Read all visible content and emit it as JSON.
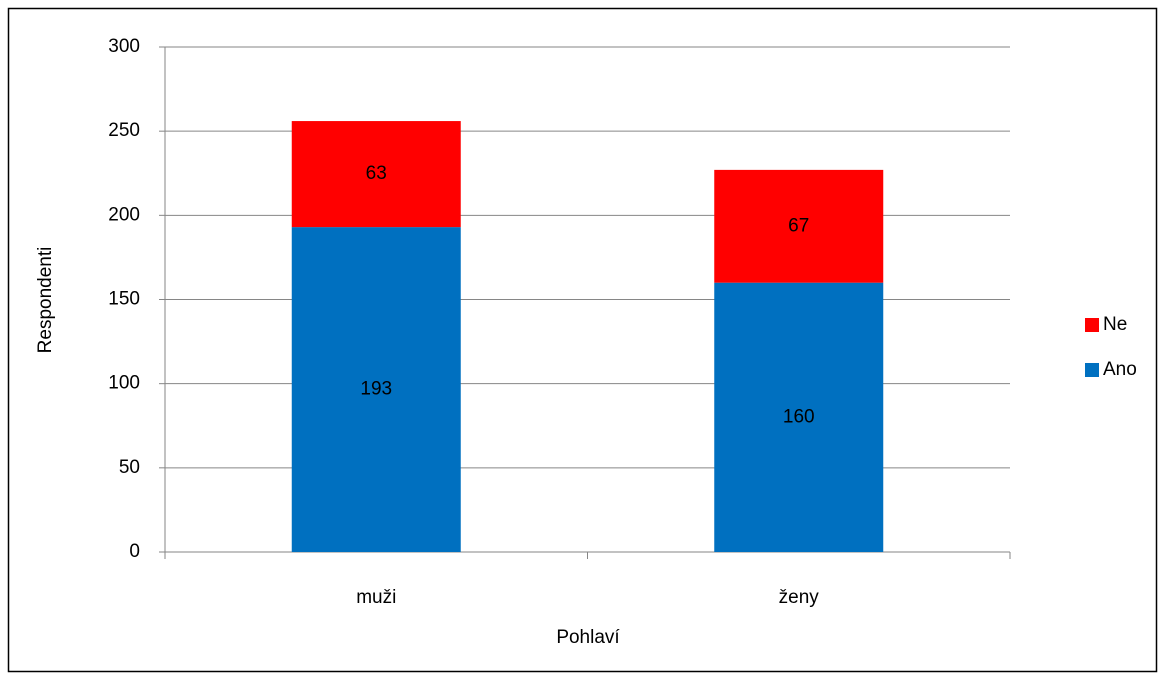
{
  "chart_data": {
    "type": "stacked_bar",
    "categories": [
      "muži",
      "ženy"
    ],
    "series": [
      {
        "name": "Ano",
        "color": "#0070c0",
        "values": [
          193,
          160
        ]
      },
      {
        "name": "Ne",
        "color": "#ff0000",
        "values": [
          63,
          67
        ]
      }
    ],
    "xlabel": "Pohlaví",
    "ylabel": "Respondenti",
    "ylim": [
      0,
      300
    ],
    "yticks": [
      0,
      50,
      100,
      150,
      200,
      250,
      300
    ],
    "grid": true,
    "legend": "right"
  }
}
